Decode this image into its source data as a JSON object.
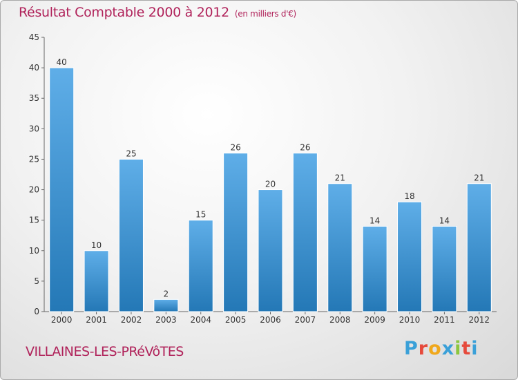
{
  "header": {
    "title": "Résultat Comptable 2000 à 2012",
    "subtitle": "(en milliers d'€)"
  },
  "footer": {
    "city": "VILLAINES-LES-PRéVôTES",
    "logo_letters": [
      "P",
      "r",
      "o",
      "x",
      "i",
      "t",
      "i"
    ],
    "logo_colors": [
      "#3aa0d8",
      "#e64a3c",
      "#f0a81c",
      "#3aa0d8",
      "#8cc63f",
      "#e64a3c",
      "#3aa0d8"
    ]
  },
  "colors": {
    "bar_light": "#5faee8",
    "bar_dark": "#2478b6",
    "title": "#b0225a"
  },
  "chart_data": {
    "type": "bar",
    "title": "Résultat Comptable 2000 à 2012",
    "categories": [
      "2000",
      "2001",
      "2002",
      "2003",
      "2004",
      "2005",
      "2006",
      "2007",
      "2008",
      "2009",
      "2010",
      "2011",
      "2012"
    ],
    "values": [
      40,
      10,
      25,
      2,
      15,
      26,
      20,
      26,
      21,
      14,
      18,
      14,
      21
    ],
    "data_labels": [
      "40",
      "10",
      "25",
      "2",
      "15",
      "26",
      "20",
      "26",
      "21",
      "14",
      "18",
      "14",
      "21"
    ],
    "ylim": [
      0,
      45
    ],
    "yticks": [
      0,
      5,
      10,
      15,
      20,
      25,
      30,
      35,
      40,
      45
    ],
    "ytick_labels": [
      "0",
      "5",
      "10",
      "15",
      "20",
      "25",
      "30",
      "35",
      "40",
      "45"
    ],
    "xlabel": "",
    "ylabel": "",
    "grid": false,
    "legend": "none"
  }
}
